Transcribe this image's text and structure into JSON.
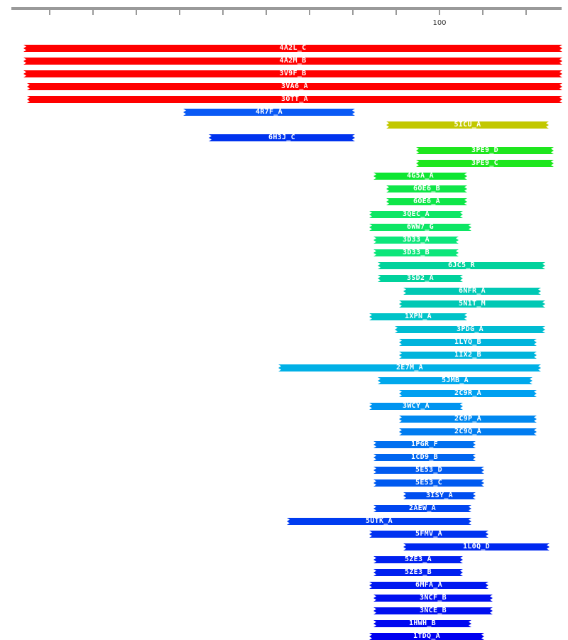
{
  "ruler": {
    "label": "100",
    "label_value": 100
  },
  "hits": [
    {
      "id": "4A2L_C",
      "color": "#ff0000"
    },
    {
      "id": "4A2M_B",
      "color": "#ff0000"
    },
    {
      "id": "3V9F_B",
      "color": "#ff0000"
    },
    {
      "id": "3VA6_A",
      "color": "#ff0000"
    },
    {
      "id": "3OTT_A",
      "color": "#ff0000"
    },
    {
      "id": "4R7F_A",
      "color": "#0a5af5"
    },
    {
      "id": "5ICU_A",
      "color": "#c2c800"
    },
    {
      "id": "6H3J_C",
      "color": "#0033ee"
    },
    {
      "id": "3PE9_D",
      "color": "#1ee61e"
    },
    {
      "id": "3PE9_C",
      "color": "#1ee61e"
    },
    {
      "id": "4G5A_A",
      "color": "#0ee632"
    },
    {
      "id": "6OE6_B",
      "color": "#0ee648"
    },
    {
      "id": "6OE6_A",
      "color": "#0ee648"
    },
    {
      "id": "3QEC_A",
      "color": "#0ce664"
    },
    {
      "id": "6WW7_G",
      "color": "#0ce664"
    },
    {
      "id": "3D33_A",
      "color": "#0ce67a"
    },
    {
      "id": "3D33_B",
      "color": "#0ce67a"
    },
    {
      "id": "6JC5_R",
      "color": "#00d29c"
    },
    {
      "id": "3SD2_A",
      "color": "#00d29c"
    },
    {
      "id": "6NFR_A",
      "color": "#00c8b4"
    },
    {
      "id": "5N1T_M",
      "color": "#00c8b4"
    },
    {
      "id": "1XPN_A",
      "color": "#00c3c8"
    },
    {
      "id": "3PDG_A",
      "color": "#00bcd2"
    },
    {
      "id": "1LYQ_B",
      "color": "#00b4dc"
    },
    {
      "id": "1IX2_B",
      "color": "#00b4dc"
    },
    {
      "id": "2E7M_A",
      "color": "#00b0e6"
    },
    {
      "id": "5JMB_A",
      "color": "#00a8ec"
    },
    {
      "id": "2C9R_A",
      "color": "#00a0f0"
    },
    {
      "id": "3WCY_A",
      "color": "#0094f0"
    },
    {
      "id": "2C9P_A",
      "color": "#0088f0"
    },
    {
      "id": "2C9Q_A",
      "color": "#007cf0"
    },
    {
      "id": "1PGR_F",
      "color": "#0070f0"
    },
    {
      "id": "1CD9_B",
      "color": "#0066f0"
    },
    {
      "id": "5E53_D",
      "color": "#005af0"
    },
    {
      "id": "5E53_C",
      "color": "#005af0"
    },
    {
      "id": "3ISY_A",
      "color": "#004ef0"
    },
    {
      "id": "2AEW_A",
      "color": "#0046f0"
    },
    {
      "id": "5UTK_A",
      "color": "#003cf0"
    },
    {
      "id": "5FMV_A",
      "color": "#0032f0"
    },
    {
      "id": "1L0Q_D",
      "color": "#0028f0"
    },
    {
      "id": "5ZE3_A",
      "color": "#0020f0"
    },
    {
      "id": "5ZE3_B",
      "color": "#0020f0"
    },
    {
      "id": "6MFA_A",
      "color": "#0018f0"
    },
    {
      "id": "3NCF_B",
      "color": "#0010f0"
    },
    {
      "id": "3NCE_B",
      "color": "#0010f0"
    },
    {
      "id": "1HWH_B",
      "color": "#0008f0"
    },
    {
      "id": "1TDQ_A",
      "color": "#0000f0"
    }
  ]
}
